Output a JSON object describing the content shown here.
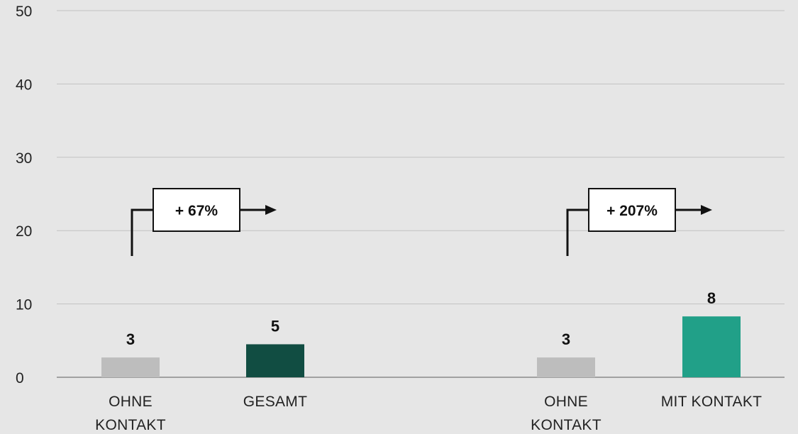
{
  "chart_data": {
    "type": "bar",
    "ylim": [
      0,
      50
    ],
    "yticks": [
      0,
      10,
      20,
      30,
      40,
      50
    ],
    "grid": true,
    "bars": [
      {
        "label_lines": [
          "OHNE",
          "KONTAKT"
        ],
        "value": 2.7,
        "value_label": "3",
        "color": "#bdbdbd"
      },
      {
        "label_lines": [
          "GESAMT"
        ],
        "value": 4.5,
        "value_label": "5",
        "color": "#114d42"
      },
      {
        "label_lines": [
          "OHNE",
          "KONTAKT"
        ],
        "value": 2.7,
        "value_label": "3",
        "color": "#bdbdbd"
      },
      {
        "label_lines": [
          "MIT KONTAKT"
        ],
        "value": 8.3,
        "value_label": "8",
        "color": "#21a088"
      }
    ],
    "annotations": [
      {
        "text": "+ 67%",
        "from_bar": 0,
        "to_bar": 1
      },
      {
        "text": "+ 207%",
        "from_bar": 2,
        "to_bar": 3
      }
    ]
  }
}
